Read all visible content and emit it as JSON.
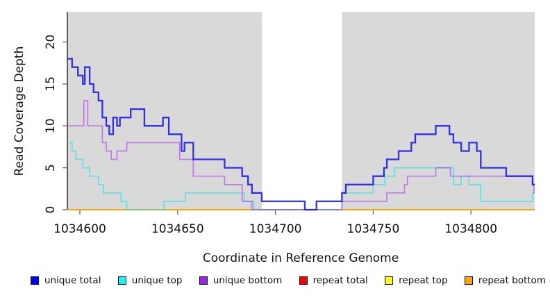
{
  "chart_data": {
    "type": "line",
    "subtype": "step-coverage",
    "title": "",
    "xlabel": "Coordinate in Reference Genome",
    "ylabel": "Read Coverage Depth",
    "xlim": [
      1034593.6,
      1034832.6
    ],
    "ylim": [
      0,
      23.6
    ],
    "x_ticks": [
      1034600,
      1034650,
      1034700,
      1034750,
      1034800
    ],
    "y_ticks": [
      0,
      5,
      10,
      15,
      20
    ],
    "grid": "off",
    "legend_position": "bottom",
    "panel_bg": "#d9d9d9",
    "highlight_band": {
      "x1": 1034693,
      "x2": 1034734,
      "color": "#ffffff"
    },
    "series": [
      {
        "name": "unique total",
        "legend_color": "#0000ff",
        "line_color": "rgba(18,18,235,0.85)",
        "width": 2.3,
        "points": [
          [
            1034593.6,
            18
          ],
          [
            1034596,
            17
          ],
          [
            1034599,
            16
          ],
          [
            1034601.5,
            15
          ],
          [
            1034602.5,
            17
          ],
          [
            1034605,
            15
          ],
          [
            1034607,
            14
          ],
          [
            1034609.5,
            13
          ],
          [
            1034611.5,
            11
          ],
          [
            1034613.5,
            10
          ],
          [
            1034615,
            9
          ],
          [
            1034617,
            11
          ],
          [
            1034619,
            10
          ],
          [
            1034620.5,
            11
          ],
          [
            1034626,
            12
          ],
          [
            1034633,
            10
          ],
          [
            1034642.5,
            11
          ],
          [
            1034645.5,
            9
          ],
          [
            1034652,
            7
          ],
          [
            1034653.5,
            8
          ],
          [
            1034658,
            6
          ],
          [
            1034674,
            5
          ],
          [
            1034683,
            4
          ],
          [
            1034686,
            3
          ],
          [
            1034688,
            2
          ],
          [
            1034693,
            1
          ],
          [
            1034715,
            0
          ],
          [
            1034721,
            1
          ],
          [
            1034734,
            2
          ],
          [
            1034736,
            3
          ],
          [
            1034750,
            4
          ],
          [
            1034755.5,
            5
          ],
          [
            1034757,
            6
          ],
          [
            1034763,
            7
          ],
          [
            1034769.5,
            8
          ],
          [
            1034771.5,
            9
          ],
          [
            1034782,
            10
          ],
          [
            1034789,
            9
          ],
          [
            1034791,
            8
          ],
          [
            1034795,
            7
          ],
          [
            1034799,
            8
          ],
          [
            1034803,
            7
          ],
          [
            1034805,
            5
          ],
          [
            1034818,
            4
          ],
          [
            1034831.5,
            3
          ]
        ]
      },
      {
        "name": "unique top",
        "legend_color": "#00ffff",
        "line_color": "rgba(0,230,230,0.55)",
        "width": 1.7,
        "points": [
          [
            1034593.6,
            8
          ],
          [
            1034596,
            7
          ],
          [
            1034598,
            6
          ],
          [
            1034601.5,
            5
          ],
          [
            1034605,
            4
          ],
          [
            1034609.5,
            3
          ],
          [
            1034612,
            2
          ],
          [
            1034621,
            1
          ],
          [
            1034624,
            0
          ],
          [
            1034643,
            1
          ],
          [
            1034654,
            2
          ],
          [
            1034684,
            1
          ],
          [
            1034689,
            0
          ],
          [
            1034734,
            2
          ],
          [
            1034750,
            3
          ],
          [
            1034756,
            4
          ],
          [
            1034761,
            5
          ],
          [
            1034791,
            3
          ],
          [
            1034795,
            4
          ],
          [
            1034799,
            3
          ],
          [
            1034805,
            1
          ],
          [
            1034831.5,
            2
          ]
        ]
      },
      {
        "name": "unique bottom",
        "legend_color": "#a020f0",
        "line_color": "rgba(160,32,240,0.5)",
        "width": 1.7,
        "points": [
          [
            1034593.6,
            10
          ],
          [
            1034602,
            13
          ],
          [
            1034604,
            10
          ],
          [
            1034611.5,
            8
          ],
          [
            1034613.5,
            7
          ],
          [
            1034616,
            6
          ],
          [
            1034619,
            7
          ],
          [
            1034624,
            8
          ],
          [
            1034651,
            6
          ],
          [
            1034658,
            4
          ],
          [
            1034674,
            3
          ],
          [
            1034683,
            1
          ],
          [
            1034688,
            0
          ],
          [
            1034734,
            1
          ],
          [
            1034757,
            2
          ],
          [
            1034766,
            3
          ],
          [
            1034767.5,
            4
          ],
          [
            1034782,
            5
          ],
          [
            1034789.5,
            4
          ],
          [
            1034831.5,
            3
          ],
          [
            1034832.2,
            2
          ]
        ]
      },
      {
        "name": "repeat total",
        "legend_color": "#ff0000",
        "line_color": "rgba(220,20,60,0.5)",
        "width": 1.7,
        "points": [
          [
            1034593.6,
            0
          ]
        ]
      },
      {
        "name": "repeat top",
        "legend_color": "#ffff00",
        "line_color": "rgba(255,255,0,0.6)",
        "width": 1.7,
        "points": [
          [
            1034593.6,
            0
          ]
        ]
      },
      {
        "name": "repeat bottom",
        "legend_color": "#ffa500",
        "line_color": "#ffa500",
        "width": 1.8,
        "points": [
          [
            1034593.6,
            0
          ]
        ]
      }
    ],
    "zero_line_overlays": [
      {
        "x1": 1034693,
        "x2": 1034721,
        "color": "#ec91a7",
        "meaning": "repeat-total-visible-in-band"
      },
      {
        "x1": 1034721,
        "x2": 1034731,
        "color": "#9cdfb0",
        "meaning": "repeat-top-over-unique-top-blend"
      }
    ]
  },
  "legend": {
    "items": [
      {
        "label": "unique total",
        "color": "#0000ff"
      },
      {
        "label": "unique top",
        "color": "#00ffff"
      },
      {
        "label": "unique bottom",
        "color": "#a020f0"
      },
      {
        "label": "repeat total",
        "color": "#ff0000"
      },
      {
        "label": "repeat top",
        "color": "#ffff00"
      },
      {
        "label": "repeat bottom",
        "color": "#ffa500"
      }
    ]
  },
  "axes": {
    "x_title": "Coordinate in Reference Genome",
    "y_title": "Read Coverage Depth"
  }
}
